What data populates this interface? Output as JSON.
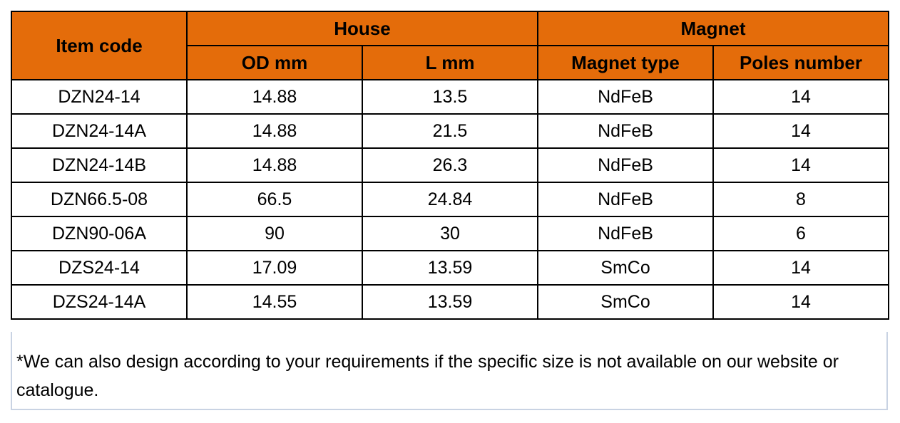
{
  "colors": {
    "header_bg": "#E46C0A",
    "border": "#000000",
    "note_border": "#C9D3E3"
  },
  "header": {
    "item_code": "Item code",
    "house": "House",
    "magnet": "Magnet",
    "od": "OD mm",
    "l": "L mm",
    "magnet_type": "Magnet type",
    "poles": "Poles number"
  },
  "rows": [
    {
      "code": "DZN24-14",
      "od": "14.88",
      "l": "13.5",
      "type": "NdFeB",
      "poles": "14"
    },
    {
      "code": "DZN24-14A",
      "od": "14.88",
      "l": "21.5",
      "type": "NdFeB",
      "poles": "14"
    },
    {
      "code": "DZN24-14B",
      "od": "14.88",
      "l": "26.3",
      "type": "NdFeB",
      "poles": "14"
    },
    {
      "code": "DZN66.5-08",
      "od": "66.5",
      "l": "24.84",
      "type": "NdFeB",
      "poles": "8"
    },
    {
      "code": "DZN90-06A",
      "od": "90",
      "l": "30",
      "type": "NdFeB",
      "poles": "6"
    },
    {
      "code": "DZS24-14",
      "od": "17.09",
      "l": "13.59",
      "type": "SmCo",
      "poles": "14"
    },
    {
      "code": "DZS24-14A",
      "od": "14.55",
      "l": "13.59",
      "type": "SmCo",
      "poles": "14"
    }
  ],
  "note": "*We can also design according to your requirements if the specific size is not available on our website or catalogue."
}
